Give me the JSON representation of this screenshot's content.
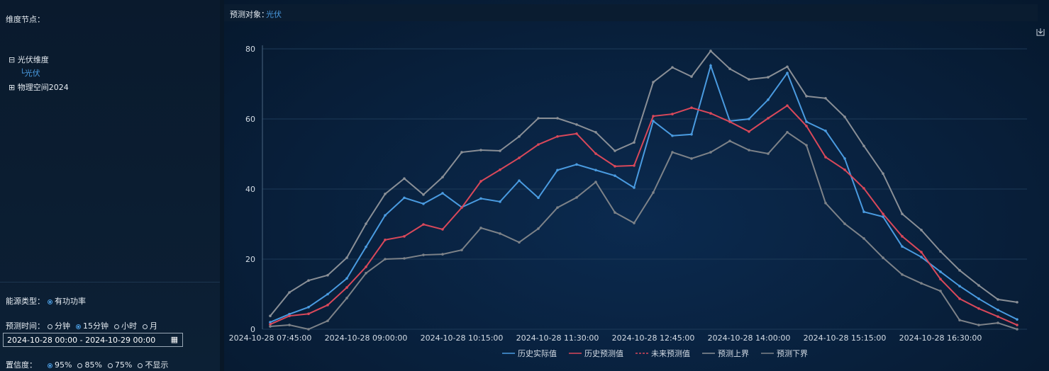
{
  "sidebar": {
    "node_label": "维度节点：",
    "tree": [
      {
        "label": "光伏维度",
        "children": [
          "光伏"
        ]
      },
      {
        "label": "物理空间2024"
      }
    ],
    "energy": {
      "label": "能源类型：",
      "options": [
        "有功功率"
      ],
      "checked": 0
    },
    "time": {
      "label": "预测时间：",
      "options": [
        "分钟",
        "15分钟",
        "小时",
        "月"
      ],
      "checked": 1,
      "range": "2024-10-28 00:00 - 2024-10-29 00:00"
    },
    "confidence": {
      "label": "置信度：",
      "options": [
        "95%",
        "85%",
        "75%",
        "不显示"
      ],
      "checked": 0
    }
  },
  "header": {
    "label": "预测对象：",
    "value": "光伏"
  },
  "chart_data": {
    "type": "line",
    "categories": [
      "2024-10-28 07:45:00",
      null,
      null,
      null,
      null,
      "2024-10-28 09:00:00",
      null,
      null,
      null,
      null,
      "2024-10-28 10:15:00",
      null,
      null,
      null,
      null,
      "2024-10-28 11:30:00",
      null,
      null,
      null,
      null,
      "2024-10-28 12:45:00",
      null,
      null,
      null,
      null,
      "2024-10-28 14:00:00",
      null,
      null,
      null,
      null,
      "2024-10-28 15:15:00",
      null,
      null,
      null,
      null,
      "2024-10-28 16:30:00",
      null,
      null,
      null,
      null
    ],
    "ylim": [
      0,
      80
    ],
    "yticks": [
      0,
      20,
      40,
      60,
      80
    ],
    "grid": true,
    "legend": "bottom",
    "series": [
      {
        "name": "历史实际值",
        "color": "#4a9be0",
        "values": [
          2,
          4.3,
          6.3,
          10,
          14.5,
          23.5,
          32.5,
          37.5,
          35.8,
          38.8,
          34.8,
          37.3,
          36.4,
          42.4,
          37.5,
          45.4,
          47,
          45.4,
          43.8,
          40.4,
          59.4,
          55.2,
          55.6,
          75.2,
          59.4,
          60,
          65.5,
          73.1,
          59.2,
          56.6,
          48.7,
          33.5,
          32.1,
          23.6,
          20.6,
          16.4,
          12.3,
          8.7,
          5.5,
          2.8
        ]
      },
      {
        "name": "历史预测值",
        "color": "#d9485a",
        "values": [
          1.4,
          3.8,
          4.4,
          6.9,
          11.9,
          17.8,
          25.5,
          26.5,
          29.9,
          28.5,
          34.7,
          42.2,
          45.5,
          48.9,
          52.7,
          55,
          55.8,
          50.1,
          46.5,
          46.7,
          60.8,
          61.4,
          63.2,
          61.6,
          59.2,
          56.4,
          60.2,
          63.8,
          58,
          49.1,
          45.5,
          40.2,
          32.9,
          26.5,
          22,
          14.3,
          8.7,
          5.9,
          3.6,
          1.2
        ]
      },
      {
        "name": "未来预测值",
        "color": "#d9485a",
        "dashed": true,
        "values": [
          null,
          null,
          null,
          null,
          null,
          null,
          null,
          null,
          null,
          null,
          null,
          null,
          null,
          null,
          null,
          null,
          null,
          null,
          null,
          null,
          null,
          null,
          null,
          null,
          null,
          null,
          null,
          null,
          null,
          null,
          null,
          null,
          null,
          null,
          null,
          null,
          null,
          null,
          null,
          null
        ]
      },
      {
        "name": "预测上界",
        "color": "#8a8f96",
        "values": [
          3.8,
          10.5,
          13.9,
          15.4,
          20.4,
          30.1,
          38.6,
          43,
          38.4,
          43.4,
          50.5,
          51.1,
          50.9,
          55,
          60.2,
          60.2,
          58.4,
          56.2,
          50.9,
          53.3,
          70.5,
          74.7,
          72.1,
          79.4,
          74.3,
          71.3,
          71.9,
          74.9,
          66.5,
          65.9,
          60.6,
          52.3,
          44.4,
          32.9,
          28.3,
          22.2,
          16.8,
          12.5,
          8.5,
          7.7
        ]
      },
      {
        "name": "预测下界",
        "color": "#7d8288",
        "values": [
          0.8,
          1.2,
          0,
          2.4,
          8.9,
          16,
          20,
          20.2,
          21.2,
          21.4,
          22.6,
          28.9,
          27.3,
          24.8,
          28.7,
          34.7,
          37.6,
          42,
          33.3,
          30.3,
          39,
          50.5,
          48.7,
          50.5,
          53.7,
          51.1,
          50.1,
          56.2,
          52.5,
          36,
          30.1,
          25.9,
          20.4,
          15.6,
          13.1,
          10.9,
          2.6,
          1.2,
          1.8,
          0
        ]
      }
    ]
  }
}
